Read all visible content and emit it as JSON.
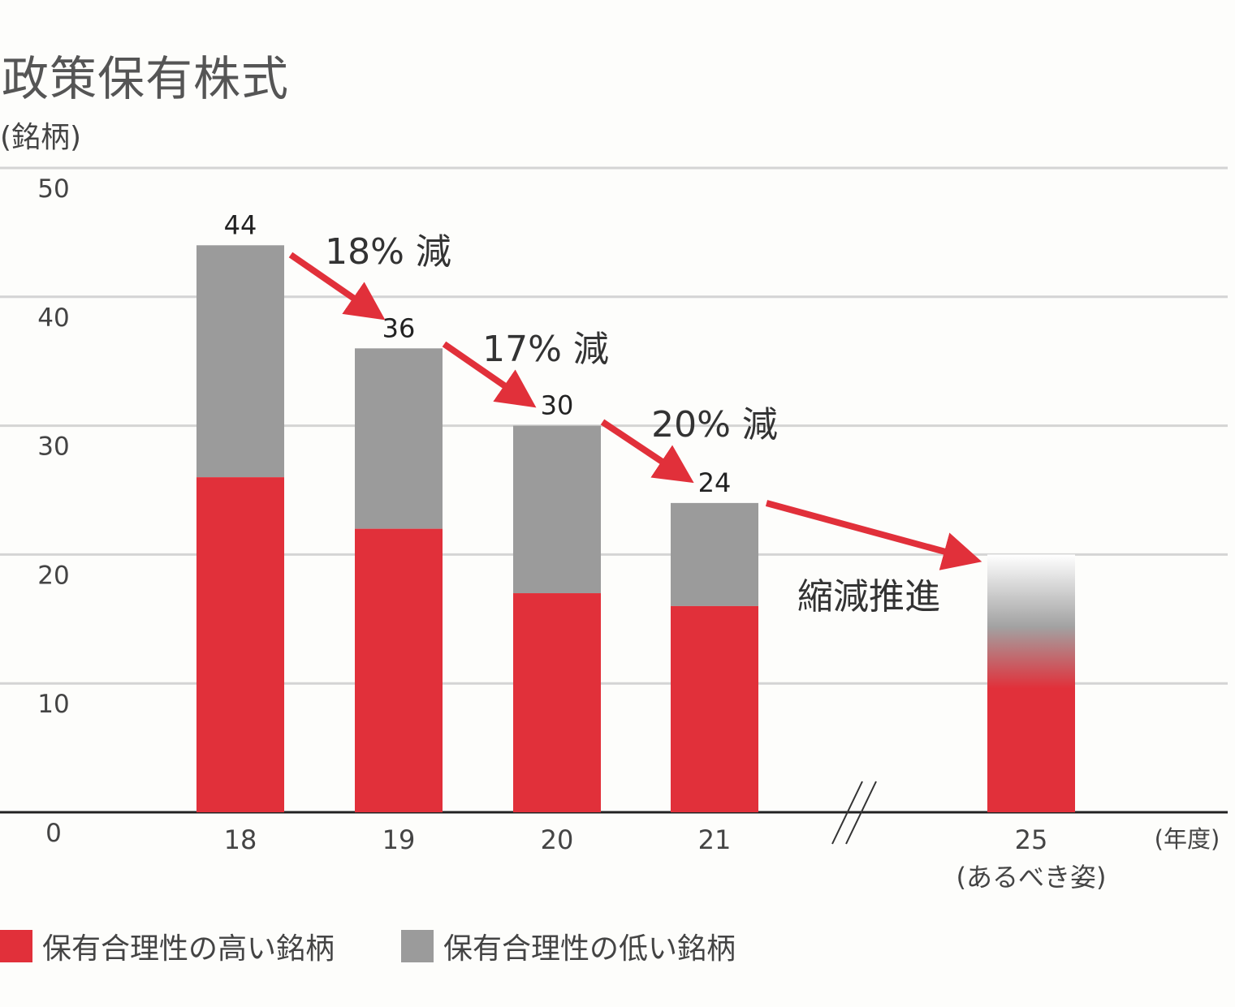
{
  "title": "政策保有株式",
  "unit_label": "(銘柄)",
  "x_unit_label": "(年度)",
  "colors": {
    "high": "#e1303a",
    "low": "#9b9b9b",
    "arrow": "#e1303a",
    "grid": "#d4d4d4",
    "axis": "#222222"
  },
  "chart_data": {
    "type": "bar",
    "stacked": true,
    "ylim": [
      0,
      50
    ],
    "yticks": [
      0,
      10,
      20,
      30,
      40,
      50
    ],
    "categories": [
      "18",
      "19",
      "20",
      "21",
      "25"
    ],
    "category_sublabels": [
      "",
      "",
      "",
      "",
      "(あるべき姿)"
    ],
    "series": [
      {
        "name": "保有合理性の高い銘柄",
        "values": [
          26,
          22,
          17,
          16,
          12
        ]
      },
      {
        "name": "保有合理性の低い銘柄",
        "values": [
          18,
          14,
          13,
          8,
          8
        ]
      }
    ],
    "totals": [
      "44",
      "36",
      "30",
      "24",
      ""
    ],
    "annotations": [
      "18% 減",
      "17% 減",
      "20% 減",
      "縮減推進"
    ],
    "grid": true,
    "axis_break_between": [
      "21",
      "25"
    ]
  },
  "legend": [
    {
      "label": "保有合理性の高い銘柄",
      "color": "#e1303a"
    },
    {
      "label": "保有合理性の低い銘柄",
      "color": "#9b9b9b"
    }
  ]
}
